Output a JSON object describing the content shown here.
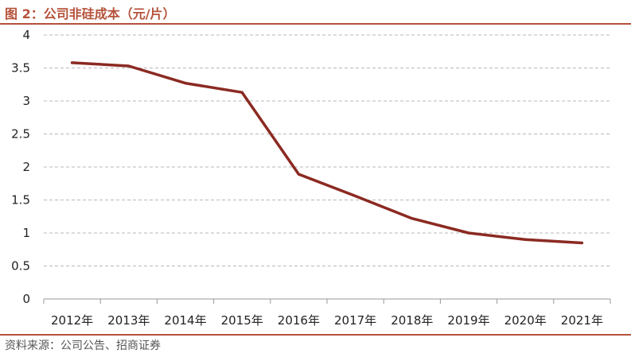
{
  "figure": {
    "title": "图 2：公司非硅成本（元/片）",
    "source": "资料来源：公司公告、招商证券",
    "accent_color": "#b5523b",
    "line_color": "#8b2a22"
  },
  "chart_data": {
    "type": "line",
    "title": "图 2：公司非硅成本（元/片）",
    "xlabel": "",
    "ylabel": "",
    "categories": [
      "2012年",
      "2013年",
      "2014年",
      "2015年",
      "2016年",
      "2017年",
      "2018年",
      "2019年",
      "2020年",
      "2021年"
    ],
    "series": [
      {
        "values": [
          3.58,
          3.53,
          3.27,
          3.13,
          1.89,
          1.56,
          1.22,
          1.0,
          0.9,
          0.85
        ]
      }
    ],
    "yticks": [
      "0",
      "0.5",
      "1",
      "1.5",
      "2",
      "2.5",
      "3",
      "3.5",
      "4"
    ],
    "ylim": [
      0,
      4
    ],
    "grid": "horizontal-dashed",
    "legend": "none"
  }
}
